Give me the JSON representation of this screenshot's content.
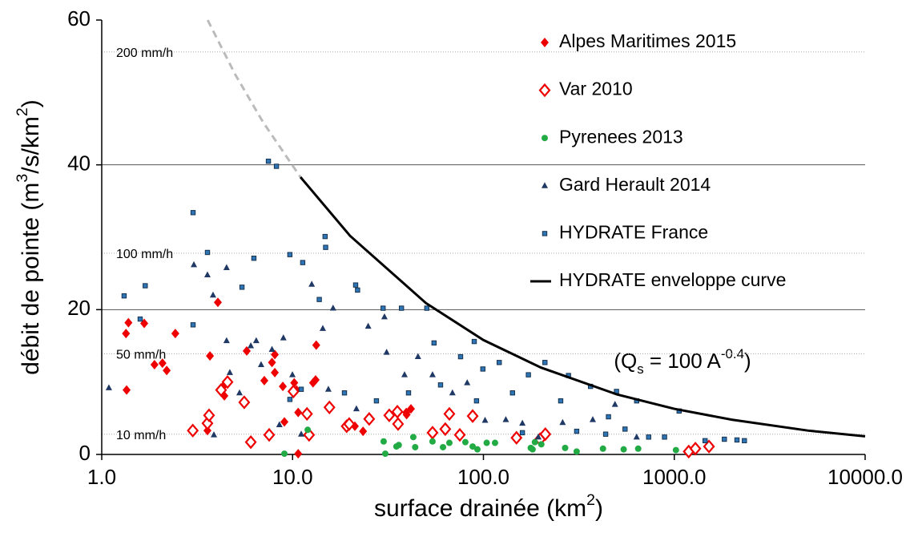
{
  "chart_data": {
    "type": "scatter",
    "xlabel": [
      {
        "text": "surface drainée (km"
      },
      {
        "sup": "2"
      },
      {
        "text": ")"
      }
    ],
    "ylabel": [
      {
        "text": "débit de pointe (m"
      },
      {
        "sup": "3"
      },
      {
        "text": "/s/km"
      },
      {
        "sup": "2"
      },
      {
        "text": ")"
      }
    ],
    "annotation": [
      {
        "text": "(Q"
      },
      {
        "sub": "s"
      },
      {
        "text": " = 100 A"
      },
      {
        "sup": "-0.4"
      },
      {
        "text": ")"
      }
    ],
    "xscale": "log",
    "xlim": [
      1,
      10000
    ],
    "xticks": [
      {
        "value": 1,
        "label": "1.0"
      },
      {
        "value": 10,
        "label": "10.0"
      },
      {
        "value": 100,
        "label": "100.0"
      },
      {
        "value": 1000,
        "label": "1000.0"
      },
      {
        "value": 10000,
        "label": "10000.0"
      }
    ],
    "ylim": [
      0,
      60
    ],
    "yticks": [
      0,
      20,
      40,
      60
    ],
    "grid": true,
    "legend": "upper right",
    "reference_lines": [
      {
        "label": "200 mm/h",
        "value": 55.6
      },
      {
        "label": "100 mm/h",
        "value": 27.8
      },
      {
        "label": "50 mm/h",
        "value": 13.9
      },
      {
        "label": "10 mm/h",
        "value": 2.8
      }
    ],
    "series": [
      {
        "name": "Alpes Maritimes 2015",
        "color": "#ee0000",
        "marker": "diamond",
        "x": [
          1.34,
          1.38,
          1.35,
          1.67,
          1.89,
          2.08,
          2.19,
          2.43,
          4.06,
          3.69,
          3.58,
          4.3,
          4.39,
          5.75,
          7.11,
          8.07,
          8.07,
          7.8,
          8.89,
          10.2,
          10.5,
          10.7,
          10.7,
          12.8,
          13.2,
          13.3,
          21.2,
          23.4,
          31.5,
          39.4,
          41.7,
          39.6,
          9.06
        ],
        "values": [
          16.7,
          18.2,
          8.9,
          18.1,
          12.4,
          12.6,
          11.6,
          16.7,
          21.0,
          13.6,
          3.3,
          9.3,
          8.1,
          14.3,
          10.2,
          13.8,
          11.3,
          12.7,
          9.4,
          9.9,
          8.9,
          0.1,
          5.8,
          9.9,
          10.3,
          15.1,
          3.9,
          3.2,
          5.4,
          5.8,
          6.3,
          5.5,
          4.5
        ]
      },
      {
        "name": "Var 2010",
        "color": "#ee0000",
        "marker": "diamond-open",
        "x": [
          3.0,
          3.58,
          3.65,
          4.22,
          4.56,
          5.58,
          6.04,
          7.54,
          10.1,
          11.9,
          12.2,
          15.6,
          19.2,
          19.8,
          25.2,
          32.1,
          35.7,
          35.4,
          54.1,
          63.1,
          66.3,
          75.2,
          87.8,
          198,
          211,
          149,
          1190,
          1290,
          1520
        ],
        "values": [
          3.3,
          4.3,
          5.4,
          8.9,
          10.0,
          7.2,
          1.7,
          2.7,
          8.7,
          5.6,
          2.7,
          6.5,
          3.9,
          4.2,
          4.9,
          5.4,
          4.2,
          5.9,
          3.0,
          3.5,
          5.6,
          2.7,
          5.3,
          2.1,
          2.8,
          2.3,
          0.4,
          0.8,
          1.1
        ]
      },
      {
        "name": "Pyrenees 2013",
        "color": "#22aa44",
        "marker": "circle",
        "x": [
          9.06,
          12.0,
          30.0,
          30.6,
          35.0,
          36.0,
          42.9,
          43.9,
          54.1,
          61.4,
          66.3,
          80.4,
          87.8,
          93.0,
          104,
          115,
          177,
          186,
          201,
          268,
          308,
          423,
          543,
          647,
          1020,
          181
        ],
        "values": [
          0.1,
          3.4,
          1.8,
          0.1,
          1.1,
          1.3,
          2.4,
          1.0,
          1.8,
          1.0,
          1.6,
          1.7,
          1.1,
          0.7,
          1.6,
          1.6,
          0.9,
          1.7,
          1.4,
          0.9,
          0.4,
          0.8,
          0.7,
          0.8,
          0.6,
          0.7
        ]
      },
      {
        "name": "Gard Herault 2014",
        "color": "#1f3864",
        "marker": "triangle",
        "x": [
          1.09,
          3.04,
          3.58,
          3.83,
          3.87,
          4.51,
          4.51,
          4.69,
          5.27,
          6.04,
          6.45,
          6.84,
          7.8,
          8.53,
          8.95,
          9.98,
          11.1,
          12.6,
          14.4,
          15.4,
          16.3,
          21.6,
          24.9,
          30.3,
          31.1,
          38.6,
          45.4,
          54.1,
          68.8,
          82.2,
          102,
          131,
          160,
          194,
          260,
          374,
          489,
          635
        ],
        "values": [
          9.2,
          26.2,
          24.8,
          22.0,
          2.7,
          25.8,
          15.7,
          11.3,
          8.5,
          15.0,
          15.7,
          12.4,
          14.5,
          4.1,
          16.1,
          11.0,
          2.8,
          23.5,
          17.4,
          9.0,
          20.2,
          6.3,
          17.7,
          19.0,
          14.1,
          11.0,
          13.5,
          11.0,
          8.5,
          9.9,
          4.7,
          4.8,
          4.3,
          2.4,
          4.4,
          4.8,
          6.9,
          2.4
        ]
      },
      {
        "name": "HYDRATE France",
        "color": "#2e75b6",
        "marker": "square",
        "x": [
          1.31,
          1.59,
          1.69,
          3.01,
          3.01,
          3.58,
          5.43,
          6.27,
          7.47,
          8.23,
          9.68,
          11.3,
          13.8,
          14.8,
          14.9,
          21.4,
          21.9,
          29.8,
          37.2,
          50.5,
          55.1,
          89.5,
          75.9,
          121,
          99.3,
          172,
          210,
          279,
          364,
          498,
          635,
          1060,
          18.7,
          27.5,
          40.5,
          59.6,
          142,
          254,
          452,
          552,
          734,
          889,
          1450,
          1830,
          2130,
          2330,
          11.1,
          9.68,
          308,
          437,
          160,
          92
        ],
        "values": [
          21.9,
          18.7,
          23.3,
          33.4,
          17.9,
          27.9,
          23.1,
          27.1,
          40.5,
          39.8,
          27.6,
          26.5,
          21.4,
          30.1,
          28.6,
          23.4,
          22.7,
          20.2,
          20.2,
          20.2,
          15.4,
          15.6,
          13.5,
          12.7,
          11.8,
          11.0,
          12.7,
          10.9,
          9.4,
          8.7,
          7.4,
          6.0,
          8.5,
          7.4,
          8.5,
          9.6,
          8.5,
          7.4,
          5.2,
          3.5,
          2.4,
          2.4,
          1.9,
          2.1,
          2.0,
          1.9,
          9.0,
          7.6,
          3.2,
          2.8,
          3.0,
          7.4
        ]
      },
      {
        "name": "HYDRATE enveloppe curve",
        "color": "#000000",
        "marker": "line",
        "x": [
          11,
          20,
          50,
          100,
          200,
          500,
          1000,
          2000,
          5000,
          10000
        ],
        "values": [
          38.3,
          30.2,
          20.9,
          15.8,
          12.0,
          8.3,
          6.3,
          4.8,
          3.3,
          2.5
        ]
      }
    ],
    "envelope_extension": {
      "color": "#bbbbbb",
      "dash": true,
      "x": [
        3.59,
        5,
        7,
        11
      ],
      "values": [
        60,
        52.5,
        45.9,
        38.3
      ]
    }
  }
}
